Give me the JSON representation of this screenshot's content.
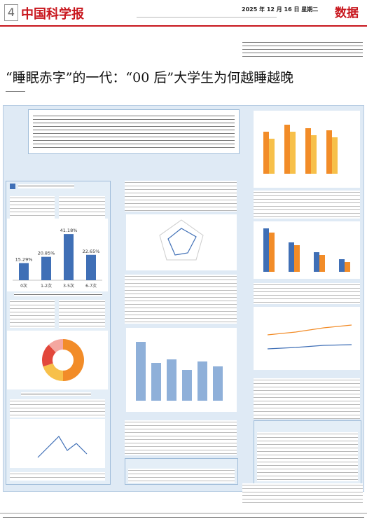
{
  "header": {
    "page_number": "4",
    "masthead": "中国科学报",
    "date": "2025 年 12 月 16 日 星期二",
    "section": "数据"
  },
  "headline": "“睡眠赤字”的一代：“00 后”大学生为何越睡越晚",
  "figure_1": {
    "type": "bar",
    "categories": [
      "0次",
      "1-2次",
      "3-5次",
      "6-7次"
    ],
    "values": [
      15.29,
      20.85,
      41.18,
      22.65
    ],
    "value_labels": [
      "15.29%",
      "20.85%",
      "41.18%",
      "22.65%"
    ],
    "color": "#3f6fb6"
  },
  "figure_2": {
    "type": "pie",
    "values": [
      50,
      20,
      18,
      12
    ],
    "colors": [
      "#f28c28",
      "#f7c04a",
      "#e2473b",
      "#f4a7a0"
    ]
  }
}
